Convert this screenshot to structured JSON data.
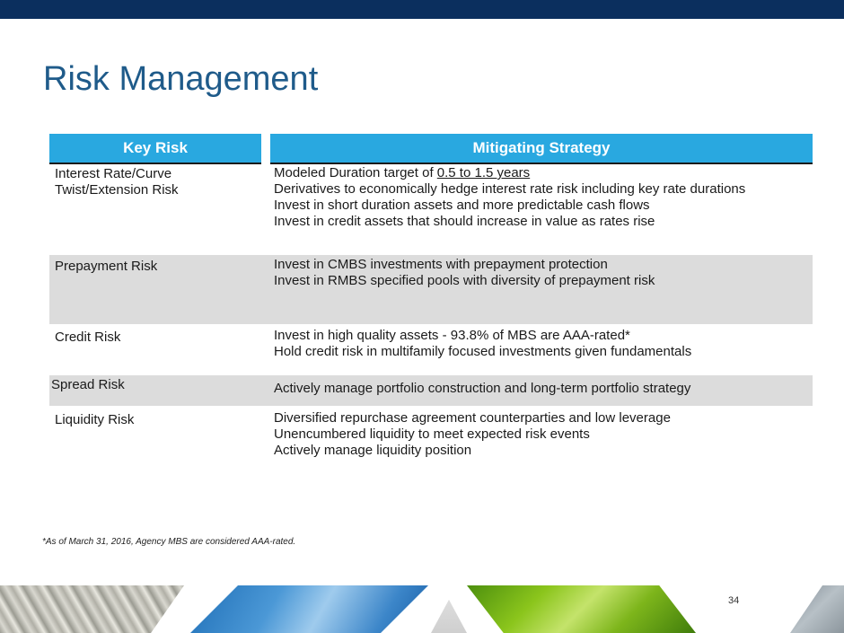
{
  "title": "Risk Management",
  "table": {
    "header_key": "Key Risk",
    "header_strategy": "Mitigating Strategy",
    "rows": [
      {
        "risk": [
          "Interest Rate/Curve",
          "Twist/Extension Risk"
        ],
        "strategy_first_prefix": "Modeled Duration target of ",
        "strategy_first_underlined": "0.5 to 1.5 years",
        "strategy": [
          "Derivatives to economically hedge interest rate risk including key rate durations",
          "Invest in short duration assets and more predictable cash flows",
          "Invest in credit assets that should increase in value as rates rise"
        ]
      },
      {
        "risk": [
          "Prepayment Risk"
        ],
        "strategy": [
          "Invest in CMBS investments with prepayment protection",
          "Invest in RMBS specified pools with diversity of prepayment risk"
        ]
      },
      {
        "risk": [
          "Credit Risk"
        ],
        "strategy": [
          "Invest in high quality assets - 93.8% of MBS are AAA-rated*",
          "Hold credit risk in multifamily focused investments given fundamentals"
        ]
      },
      {
        "risk": [
          "Spread Risk"
        ],
        "strategy": [
          "Actively manage portfolio construction and long-term portfolio strategy"
        ]
      },
      {
        "risk": [
          "Liquidity Risk"
        ],
        "strategy": [
          "Diversified repurchase agreement counterparties and low leverage",
          "Unencumbered liquidity to meet expected risk events",
          "Actively manage liquidity position"
        ]
      }
    ]
  },
  "footnote": "*As of March 31, 2016, Agency MBS are considered AAA-rated.",
  "page_number": "34",
  "colors": {
    "top_bar": "#0b2f5e",
    "title": "#1f5b8a",
    "header_fill": "#29a8e0",
    "shaded_row": "#dcdcdc"
  },
  "images": [
    "rope-photo",
    "sky-photo",
    "leaf-photo"
  ]
}
